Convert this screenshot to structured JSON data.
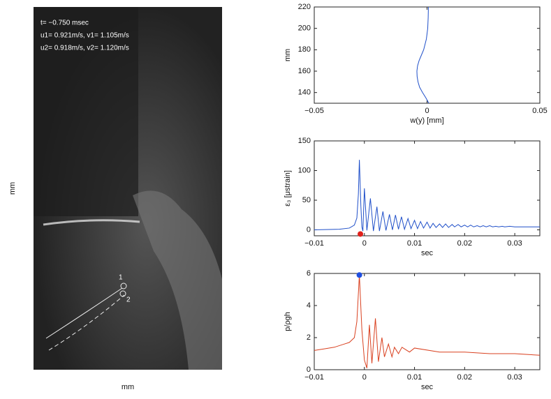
{
  "image_panel": {
    "annotations": [
      "t= −0.750 msec",
      "u1= 0.921m/s, v1= 1.105m/s",
      "u2= 0.918m/s, v2= 1.120m/s"
    ],
    "markers": [
      "1",
      "2"
    ],
    "xlabel": "mm",
    "ylabel": "mm"
  },
  "chart_data": [
    {
      "type": "line",
      "xlabel": "w(y) [mm]",
      "ylabel": "mm",
      "color": "#1f4fc9",
      "xlim": [
        -0.05,
        0.05
      ],
      "xticks": [
        {
          "value": -0.05,
          "label": "−0.05"
        },
        0,
        0.05
      ],
      "ylim": [
        130,
        220
      ],
      "yticks": [
        140,
        160,
        180,
        200,
        220
      ],
      "x": [
        0.0008,
        -0.0005,
        -0.002,
        -0.0033,
        -0.004,
        -0.0044,
        -0.0045,
        -0.0042,
        -0.0035,
        -0.0025,
        -0.0015,
        -0.0003,
        0.0003,
        0.0005,
        0.0006
      ],
      "values": [
        130,
        135,
        140,
        145,
        150,
        155,
        160,
        165,
        170,
        175,
        180,
        190,
        200,
        210,
        220
      ]
    },
    {
      "type": "line",
      "xlabel": "sec",
      "ylabel": "ε₃ [μstrain]",
      "color": "#1f4fc9",
      "xlim": [
        -0.01,
        0.035
      ],
      "xticks": [
        {
          "value": -0.01,
          "label": "−0.01"
        },
        0,
        0.01,
        0.02,
        0.03
      ],
      "ylim": [
        -10,
        150
      ],
      "yticks": [
        0,
        50,
        100,
        150
      ],
      "x": [
        -0.01,
        -0.005,
        -0.003,
        -0.002,
        -0.0015,
        -0.0012,
        -0.001,
        -0.0007,
        -0.0005,
        -0.0003,
        0,
        0.0005,
        0.0012,
        0.0018,
        0.0025,
        0.003,
        0.0037,
        0.0043,
        0.005,
        0.0056,
        0.0062,
        0.0068,
        0.0074,
        0.008,
        0.0087,
        0.0093,
        0.01,
        0.0106,
        0.0112,
        0.0118,
        0.0125,
        0.0131,
        0.0137,
        0.0143,
        0.015,
        0.0156,
        0.0162,
        0.0168,
        0.0175,
        0.018,
        0.0187,
        0.0193,
        0.02,
        0.0206,
        0.0212,
        0.0218,
        0.0225,
        0.0231,
        0.0237,
        0.0243,
        0.025,
        0.0256,
        0.0262,
        0.0268,
        0.0275,
        0.028,
        0.029,
        0.03,
        0.032,
        0.035
      ],
      "values": [
        0,
        1,
        3,
        8,
        20,
        60,
        118,
        40,
        5,
        -2,
        70,
        -1,
        53,
        -2,
        39,
        -2,
        31,
        -1,
        26,
        0,
        25,
        1,
        22,
        1,
        19,
        2,
        16,
        2,
        14,
        3,
        13,
        3,
        11,
        4,
        10,
        4,
        10,
        4,
        9,
        5,
        9,
        5,
        8,
        5,
        8,
        5,
        7,
        5,
        7,
        5,
        7,
        5,
        6,
        5,
        6,
        5,
        6,
        5,
        5,
        5
      ],
      "points": [
        {
          "x": -0.0008,
          "y": -7,
          "color": "#e0201b"
        }
      ]
    },
    {
      "type": "line",
      "xlabel": "sec",
      "ylabel": "p/ρgh",
      "color": "#d9401f",
      "xlim": [
        -0.01,
        0.035
      ],
      "xticks": [
        {
          "value": -0.01,
          "label": "−0.01"
        },
        0,
        0.01,
        0.02,
        0.03
      ],
      "ylim": [
        0,
        6
      ],
      "yticks": [
        0,
        2,
        4,
        6
      ],
      "x": [
        -0.01,
        -0.008,
        -0.006,
        -0.004,
        -0.003,
        -0.002,
        -0.0015,
        -0.001,
        -0.0005,
        0,
        0.0005,
        0.001,
        0.0015,
        0.0022,
        0.0028,
        0.0035,
        0.004,
        0.0048,
        0.0055,
        0.006,
        0.0068,
        0.0075,
        0.009,
        0.01,
        0.015,
        0.02,
        0.025,
        0.03,
        0.035
      ],
      "values": [
        1.2,
        1.3,
        1.4,
        1.6,
        1.7,
        2.0,
        3.0,
        5.9,
        2.5,
        0.6,
        0.1,
        2.8,
        0.4,
        3.2,
        0.5,
        2.0,
        0.8,
        1.6,
        0.8,
        1.4,
        1.0,
        1.4,
        1.1,
        1.35,
        1.1,
        1.1,
        1.0,
        1.0,
        0.9
      ],
      "points": [
        {
          "x": -0.001,
          "y": 5.9,
          "color": "#1f4fe0"
        }
      ]
    }
  ]
}
